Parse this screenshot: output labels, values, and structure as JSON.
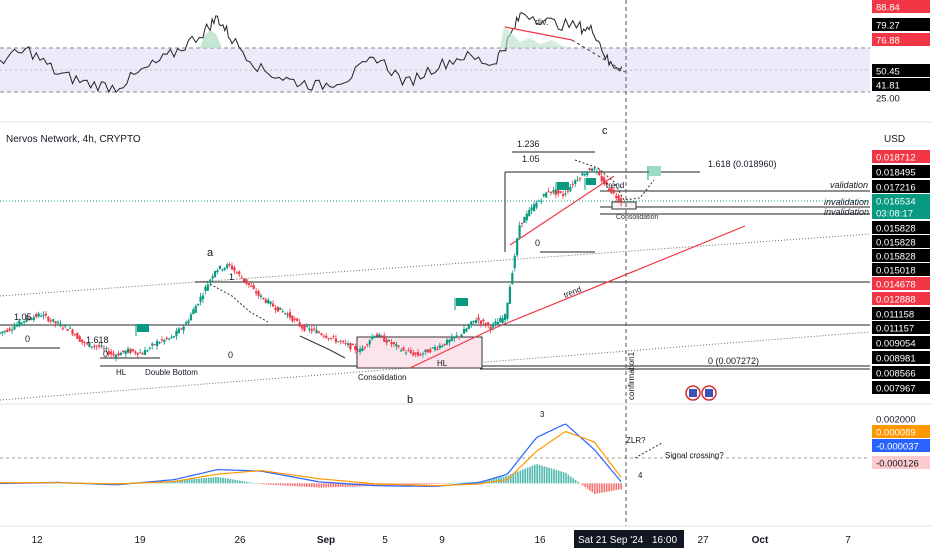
{
  "header": {
    "title": "Nervos Network, 4h, CRYPTO",
    "currency": "USD"
  },
  "colors": {
    "up": "#089981",
    "down": "#f23645",
    "red_line": "#f23645",
    "green_tag": "#089981",
    "red_tag": "#f23645",
    "macd": "#2962ff",
    "signal": "#ff9800",
    "rsi": "#222222",
    "rsi_band": "#ede8fa",
    "crosshair": "#555555",
    "hist_up": "#26a69a",
    "hist_down": "#ef5350"
  },
  "rsi_pane": {
    "axis_labels": [
      {
        "text": "88.84",
        "bg": "#f23645",
        "fg": "#ffffff"
      },
      {
        "text": "79.27",
        "bg": "#000000",
        "fg": "#ffffff"
      },
      {
        "text": "76.88",
        "bg": "#f23645",
        "fg": "#ffffff"
      },
      {
        "text": "50.45",
        "bg": "#000000",
        "fg": "#ffffff"
      },
      {
        "text": "41.81",
        "bg": "#000000",
        "fg": "#ffffff"
      },
      {
        "text": "25.00",
        "bg": "",
        "fg": "#131722"
      }
    ],
    "annotation": "div."
  },
  "price_pane": {
    "axis_labels": [
      {
        "text": "0.018712",
        "bg": "#f23645",
        "fg": "#ffffff"
      },
      {
        "text": "0.018495",
        "bg": "#000000",
        "fg": "#ffffff"
      },
      {
        "text": "0.017216",
        "bg": "#000000",
        "fg": "#ffffff"
      },
      {
        "text": "0.016534",
        "bg": "#089981",
        "fg": "#ffffff"
      },
      {
        "text": "03:08:17",
        "bg": "#089981",
        "fg": "#ffffff"
      },
      {
        "text": "0.015828",
        "bg": "#000000",
        "fg": "#ffffff"
      },
      {
        "text": "0.015828",
        "bg": "#000000",
        "fg": "#ffffff"
      },
      {
        "text": "0.015828",
        "bg": "#000000",
        "fg": "#ffffff"
      },
      {
        "text": "0.015018",
        "bg": "#000000",
        "fg": "#ffffff"
      },
      {
        "text": "0.014678",
        "bg": "#f23645",
        "fg": "#ffffff"
      },
      {
        "text": "0.012888",
        "bg": "#f23645",
        "fg": "#ffffff"
      },
      {
        "text": "0.011158",
        "bg": "#000000",
        "fg": "#ffffff"
      },
      {
        "text": "0.011157",
        "bg": "#000000",
        "fg": "#ffffff"
      },
      {
        "text": "0.009054",
        "bg": "#000000",
        "fg": "#ffffff"
      },
      {
        "text": "0.008981",
        "bg": "#000000",
        "fg": "#ffffff"
      },
      {
        "text": "0.008566",
        "bg": "#000000",
        "fg": "#ffffff"
      },
      {
        "text": "0.007967",
        "bg": "#000000",
        "fg": "#ffffff"
      }
    ],
    "annotations": {
      "a": "a",
      "b": "b",
      "c": "c",
      "fib_1236": "1.236",
      "fib_105_top": "1.05",
      "fib_1618_top": "1.618 (0.018960)",
      "fib_0_mid": "0",
      "fib_105_left": "1.05",
      "fib_1618_left": "1.618",
      "fib_0_left_a": "0",
      "fib_0_left_b": "0",
      "fib_1": "1",
      "fib_0_low": "0",
      "fib_0_bottom": "0 (0.007272)",
      "hl_left": "HL",
      "double_bottom": "Double Bottom",
      "consolidation_left": "Consolidation",
      "hl_mid": "HL",
      "trend_1": "trend",
      "trend_2": "trend",
      "validation": "validation",
      "invalidation_1": "invalidation",
      "invalidation_2": "invalidation",
      "consolidation_right": "Consolidation",
      "confirmation": "confirmation1"
    }
  },
  "macd_pane": {
    "axis_labels": [
      {
        "text": "0.002000",
        "bg": "",
        "fg": "#131722"
      },
      {
        "text": "0.000089",
        "bg": "#ff9800",
        "fg": "#ffffff"
      },
      {
        "text": "-0.000037",
        "bg": "#2962ff",
        "fg": "#ffffff"
      },
      {
        "text": "-0.000126",
        "bg": "#fccbcd",
        "fg": "#131722"
      }
    ],
    "annotations": {
      "wave3": "3",
      "wave4": "4",
      "zlr": "ZLR?",
      "signal_crossing": "Signal crossing?"
    }
  },
  "time_axis": {
    "labels": [
      "12",
      "19",
      "26",
      "Sep",
      "5",
      "9",
      "16",
      "27",
      "Oct",
      "7"
    ],
    "crosshair_label": "Sat 21 Sep '24",
    "crosshair_time": "16:00"
  },
  "chart_data": {
    "type": "candlestick",
    "title": "Nervos Network, 4h, CRYPTO",
    "y_unit": "USD",
    "x_range": [
      "2024-08-09",
      "2024-10-08"
    ],
    "y_range": [
      0.0072,
      0.0189
    ],
    "last_price": 0.016534,
    "key_levels": [
      0.01896,
      0.018495,
      0.017216,
      0.015828,
      0.015018,
      0.014678,
      0.012888,
      0.011158,
      0.009054,
      0.008981,
      0.008566,
      0.007272
    ],
    "price_path": [
      [
        "2024-08-09",
        0.0103
      ],
      [
        "2024-08-10",
        0.0106
      ],
      [
        "2024-08-11",
        0.011
      ],
      [
        "2024-08-12",
        0.0112
      ],
      [
        "2024-08-13",
        0.0108
      ],
      [
        "2024-08-14",
        0.0105
      ],
      [
        "2024-08-15",
        0.0098
      ],
      [
        "2024-08-16",
        0.0097
      ],
      [
        "2024-08-17",
        0.0093
      ],
      [
        "2024-08-18",
        0.0095
      ],
      [
        "2024-08-19",
        0.0094
      ],
      [
        "2024-08-20",
        0.0099
      ],
      [
        "2024-08-21",
        0.0101
      ],
      [
        "2024-08-22",
        0.0108
      ],
      [
        "2024-08-23",
        0.012
      ],
      [
        "2024-08-24",
        0.0133
      ],
      [
        "2024-08-25",
        0.0135
      ],
      [
        "2024-08-26",
        0.0128
      ],
      [
        "2024-08-27",
        0.0121
      ],
      [
        "2024-08-28",
        0.0116
      ],
      [
        "2024-08-29",
        0.0112
      ],
      [
        "2024-08-30",
        0.0106
      ],
      [
        "2024-08-31",
        0.0104
      ],
      [
        "2024-09-01",
        0.0101
      ],
      [
        "2024-09-02",
        0.0098
      ],
      [
        "2024-09-03",
        0.0095
      ],
      [
        "2024-09-04",
        0.0103
      ],
      [
        "2024-09-05",
        0.0099
      ],
      [
        "2024-09-06",
        0.0095
      ],
      [
        "2024-09-07",
        0.0093
      ],
      [
        "2024-09-08",
        0.0096
      ],
      [
        "2024-09-09",
        0.0099
      ],
      [
        "2024-09-10",
        0.0103
      ],
      [
        "2024-09-11",
        0.011
      ],
      [
        "2024-09-12",
        0.0106
      ],
      [
        "2024-09-13",
        0.0111
      ],
      [
        "2024-09-14",
        0.0154
      ],
      [
        "2024-09-15",
        0.0163
      ],
      [
        "2024-09-16",
        0.017
      ],
      [
        "2024-09-17",
        0.0168
      ],
      [
        "2024-09-18",
        0.0176
      ],
      [
        "2024-09-19",
        0.0181
      ],
      [
        "2024-09-20",
        0.0172
      ],
      [
        "2024-09-21",
        0.0165
      ]
    ],
    "series": [
      {
        "name": "RSI",
        "y_range": [
          20,
          95
        ],
        "values": [
          [
            "2024-08-09",
            55
          ],
          [
            "2024-08-11",
            62
          ],
          [
            "2024-08-13",
            45
          ],
          [
            "2024-08-15",
            38
          ],
          [
            "2024-08-17",
            35
          ],
          [
            "2024-08-19",
            48
          ],
          [
            "2024-08-21",
            60
          ],
          [
            "2024-08-23",
            75
          ],
          [
            "2024-08-24",
            86
          ],
          [
            "2024-08-25",
            70
          ],
          [
            "2024-08-27",
            48
          ],
          [
            "2024-08-29",
            40
          ],
          [
            "2024-08-31",
            36
          ],
          [
            "2024-09-02",
            42
          ],
          [
            "2024-09-04",
            57
          ],
          [
            "2024-09-06",
            38
          ],
          [
            "2024-09-08",
            50
          ],
          [
            "2024-09-10",
            58
          ],
          [
            "2024-09-12",
            52
          ],
          [
            "2024-09-13",
            68
          ],
          [
            "2024-09-14",
            90
          ],
          [
            "2024-09-16",
            82
          ],
          [
            "2024-09-18",
            79
          ],
          [
            "2024-09-19",
            76
          ],
          [
            "2024-09-20",
            52
          ],
          [
            "2024-09-21",
            50
          ]
        ]
      },
      {
        "name": "MACD",
        "y_range": [
          -0.0012,
          0.0024
        ],
        "values": [
          [
            "2024-08-09",
            0.0
          ],
          [
            "2024-08-13",
            3e-05
          ],
          [
            "2024-08-17",
            -5e-05
          ],
          [
            "2024-08-21",
            0.00012
          ],
          [
            "2024-08-24",
            0.00045
          ],
          [
            "2024-08-27",
            0.0004
          ],
          [
            "2024-08-31",
            5e-05
          ],
          [
            "2024-09-04",
            -8e-05
          ],
          [
            "2024-09-08",
            -0.0001
          ],
          [
            "2024-09-11",
            2e-05
          ],
          [
            "2024-09-13",
            0.0003
          ],
          [
            "2024-09-15",
            0.0015
          ],
          [
            "2024-09-17",
            0.00195
          ],
          [
            "2024-09-19",
            0.0011
          ],
          [
            "2024-09-21",
            -4e-05
          ]
        ]
      },
      {
        "name": "Signal",
        "y_range": [
          -0.0012,
          0.0024
        ],
        "values": [
          [
            "2024-08-09",
            2e-05
          ],
          [
            "2024-08-13",
            2e-05
          ],
          [
            "2024-08-17",
            -2e-05
          ],
          [
            "2024-08-21",
            6e-05
          ],
          [
            "2024-08-24",
            0.0003
          ],
          [
            "2024-08-27",
            0.00042
          ],
          [
            "2024-08-31",
            0.00015
          ],
          [
            "2024-09-04",
            -2e-05
          ],
          [
            "2024-09-08",
            -8e-05
          ],
          [
            "2024-09-11",
            -2e-05
          ],
          [
            "2024-09-13",
            0.00012
          ],
          [
            "2024-09-15",
            0.00105
          ],
          [
            "2024-09-17",
            0.0017
          ],
          [
            "2024-09-19",
            0.00135
          ],
          [
            "2024-09-21",
            9e-05
          ]
        ]
      }
    ]
  }
}
